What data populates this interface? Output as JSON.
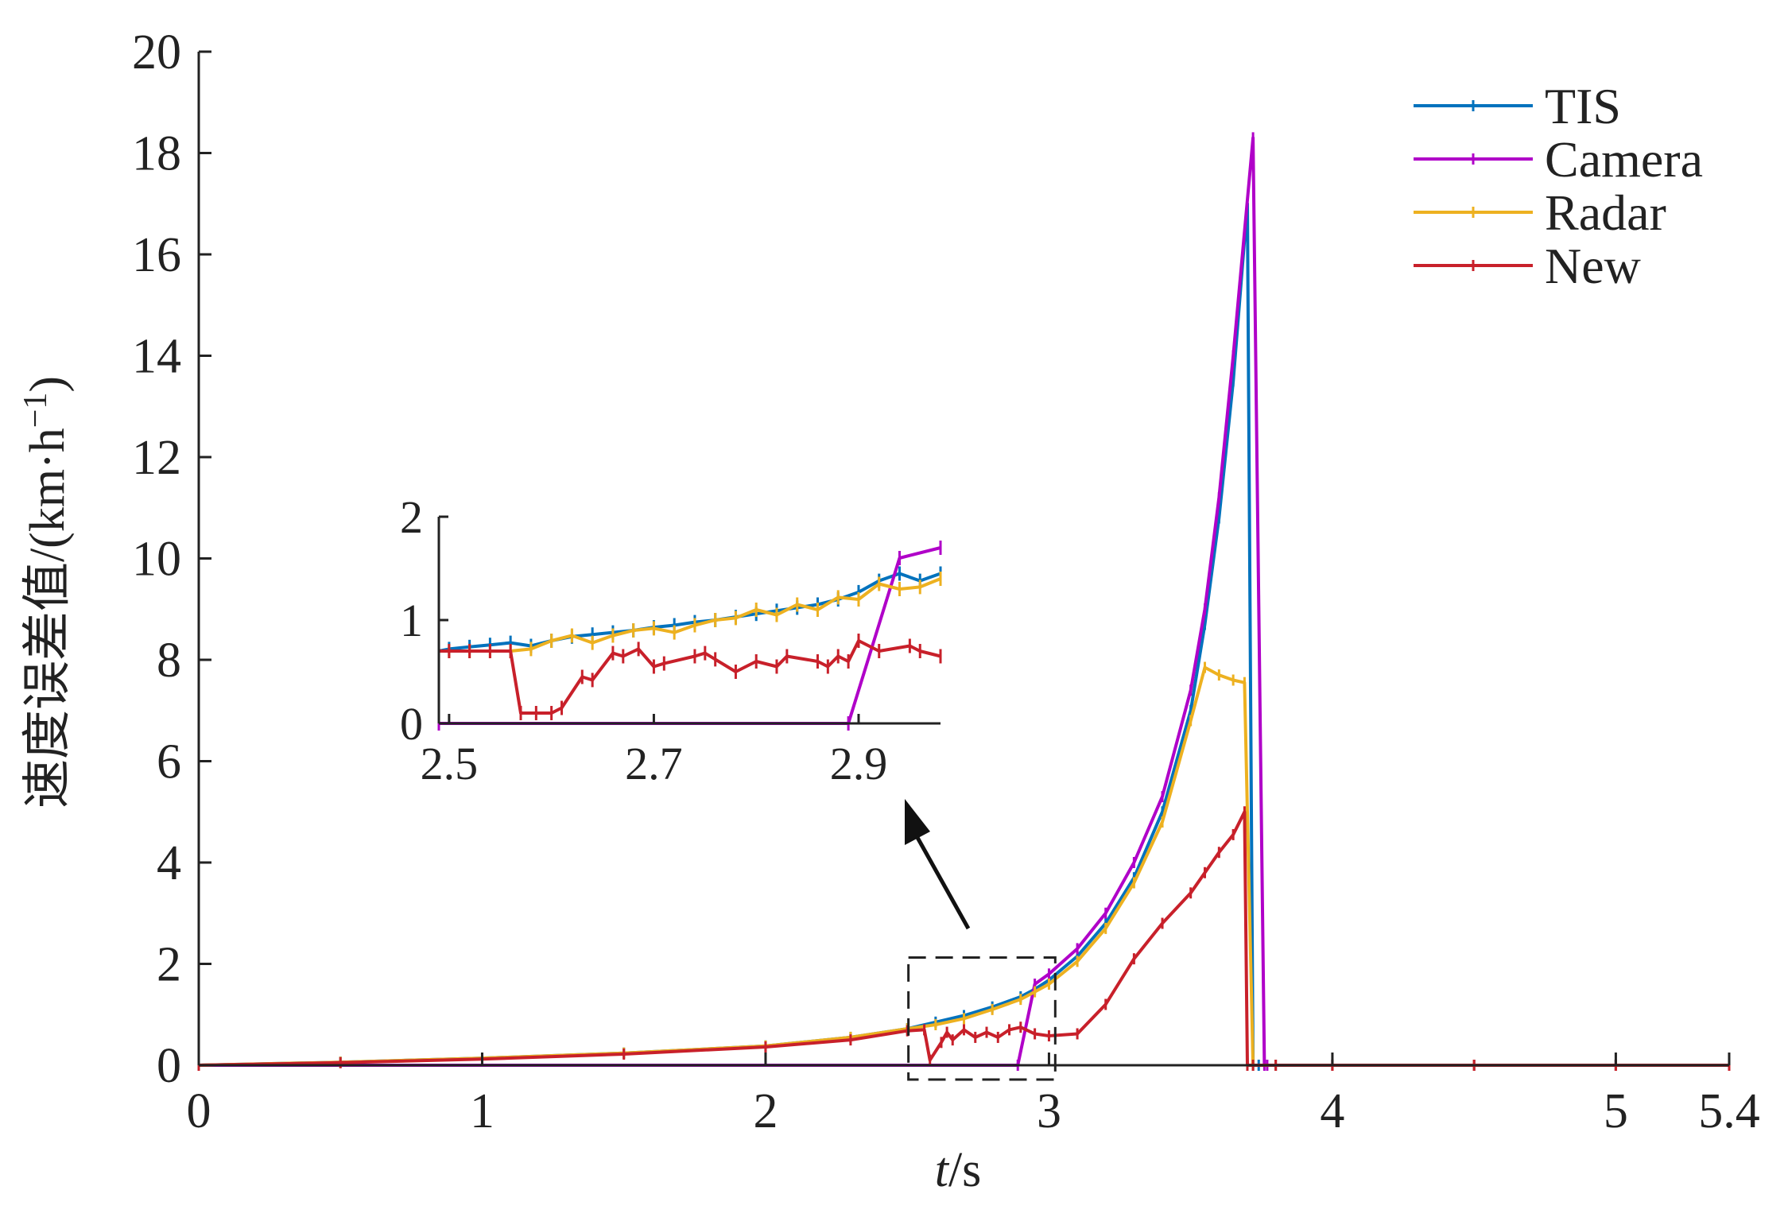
{
  "chart_data": {
    "type": "line",
    "xlabel_italic": "t",
    "xlabel_unit": "/s",
    "ylabel_main": "速度误差值/(km·h",
    "ylabel_sup": "−1",
    "ylabel_close": ")",
    "xlim": [
      0,
      5.4
    ],
    "ylim": [
      0,
      20
    ],
    "x_ticks": [
      0,
      1,
      2,
      3,
      4,
      5,
      5.4
    ],
    "x_tick_labels": [
      "0",
      "1",
      "2",
      "3",
      "4",
      "5",
      "5.4"
    ],
    "y_ticks": [
      0,
      2,
      4,
      6,
      8,
      10,
      12,
      14,
      16,
      18,
      20
    ],
    "y_tick_labels": [
      "0",
      "2",
      "4",
      "6",
      "8",
      "10",
      "12",
      "14",
      "16",
      "18",
      "20"
    ],
    "legend_position": "top-right",
    "grid": false,
    "series": [
      {
        "name": "TIS",
        "color": "#0072BD",
        "x": [
          0,
          0.5,
          1.0,
          1.5,
          2.0,
          2.3,
          2.5,
          2.6,
          2.7,
          2.8,
          2.9,
          2.95,
          3.0,
          3.1,
          3.2,
          3.3,
          3.4,
          3.5,
          3.55,
          3.6,
          3.65,
          3.7,
          3.72,
          3.74,
          3.8,
          4.0,
          4.5,
          5.0,
          5.4
        ],
        "y": [
          0,
          0.06,
          0.14,
          0.24,
          0.38,
          0.55,
          0.72,
          0.85,
          0.98,
          1.15,
          1.35,
          1.5,
          1.68,
          2.15,
          2.8,
          3.7,
          5.0,
          7.0,
          8.7,
          10.8,
          13.5,
          17.0,
          0,
          0,
          0,
          0,
          0,
          0,
          0
        ]
      },
      {
        "name": "Camera",
        "color": "#B000C8",
        "x": [
          0,
          2.89,
          2.95,
          3.0,
          3.1,
          3.2,
          3.3,
          3.4,
          3.5,
          3.55,
          3.6,
          3.65,
          3.72,
          3.76,
          3.77,
          4.0,
          4.5,
          5.0,
          5.4
        ],
        "y": [
          0,
          0,
          1.6,
          1.8,
          2.3,
          3.0,
          4.0,
          5.3,
          7.4,
          9.0,
          11.2,
          14.0,
          18.3,
          0,
          0,
          0,
          0,
          0,
          0
        ]
      },
      {
        "name": "Radar",
        "color": "#EDB120",
        "x": [
          0,
          0.5,
          1.0,
          1.5,
          2.0,
          2.3,
          2.5,
          2.6,
          2.7,
          2.8,
          2.9,
          2.95,
          3.0,
          3.1,
          3.2,
          3.3,
          3.4,
          3.5,
          3.55,
          3.6,
          3.65,
          3.69,
          3.7,
          3.72,
          3.8,
          4.0,
          4.5,
          5.0,
          5.4
        ],
        "y": [
          0,
          0.06,
          0.14,
          0.24,
          0.38,
          0.55,
          0.72,
          0.8,
          0.92,
          1.1,
          1.3,
          1.45,
          1.6,
          2.05,
          2.7,
          3.6,
          4.8,
          6.8,
          7.85,
          7.7,
          7.6,
          7.55,
          5.0,
          0,
          0,
          0,
          0,
          0,
          0
        ]
      },
      {
        "name": "New",
        "color": "#C8202A",
        "x": [
          0,
          0.5,
          1.0,
          1.5,
          2.0,
          2.3,
          2.5,
          2.56,
          2.58,
          2.62,
          2.64,
          2.66,
          2.7,
          2.74,
          2.78,
          2.82,
          2.86,
          2.9,
          2.95,
          3.0,
          3.1,
          3.2,
          3.3,
          3.4,
          3.5,
          3.55,
          3.6,
          3.65,
          3.69,
          3.7,
          3.72,
          3.8,
          4.0,
          4.5,
          5.0,
          5.4
        ],
        "y": [
          0,
          0.05,
          0.12,
          0.22,
          0.36,
          0.5,
          0.68,
          0.7,
          0.1,
          0.45,
          0.65,
          0.5,
          0.7,
          0.55,
          0.65,
          0.55,
          0.7,
          0.75,
          0.62,
          0.58,
          0.62,
          1.2,
          2.1,
          2.8,
          3.4,
          3.8,
          4.2,
          4.55,
          5.0,
          0,
          0,
          0,
          0,
          0,
          0,
          0
        ]
      }
    ],
    "inset": {
      "xlim": [
        2.49,
        2.98
      ],
      "ylim": [
        0,
        2
      ],
      "x_ticks": [
        2.5,
        2.7,
        2.9
      ],
      "x_tick_labels": [
        "2.5",
        "2.7",
        "2.9"
      ],
      "y_ticks": [
        0,
        1,
        2
      ],
      "y_tick_labels": [
        "0",
        "1",
        "2"
      ],
      "series": [
        {
          "name": "TIS",
          "color": "#0072BD",
          "x": [
            2.49,
            2.5,
            2.52,
            2.54,
            2.56,
            2.58,
            2.6,
            2.62,
            2.64,
            2.66,
            2.68,
            2.7,
            2.72,
            2.74,
            2.76,
            2.78,
            2.8,
            2.82,
            2.84,
            2.86,
            2.88,
            2.9,
            2.92,
            2.94,
            2.96,
            2.98
          ],
          "y": [
            0.7,
            0.72,
            0.74,
            0.76,
            0.78,
            0.75,
            0.8,
            0.84,
            0.86,
            0.88,
            0.9,
            0.93,
            0.95,
            0.98,
            1.0,
            1.03,
            1.06,
            1.09,
            1.12,
            1.15,
            1.2,
            1.27,
            1.38,
            1.45,
            1.38,
            1.45
          ]
        },
        {
          "name": "Camera",
          "color": "#B000C8",
          "x": [
            2.49,
            2.89,
            2.94,
            2.98
          ],
          "y": [
            0,
            0,
            1.6,
            1.7
          ]
        },
        {
          "name": "Radar",
          "color": "#EDB120",
          "x": [
            2.49,
            2.5,
            2.52,
            2.54,
            2.56,
            2.58,
            2.6,
            2.62,
            2.64,
            2.66,
            2.68,
            2.7,
            2.72,
            2.74,
            2.76,
            2.78,
            2.8,
            2.82,
            2.84,
            2.86,
            2.88,
            2.9,
            2.92,
            2.94,
            2.96,
            2.98
          ],
          "y": [
            0.7,
            0.7,
            0.7,
            0.7,
            0.7,
            0.72,
            0.8,
            0.85,
            0.78,
            0.85,
            0.9,
            0.92,
            0.88,
            0.95,
            1.0,
            1.02,
            1.1,
            1.05,
            1.15,
            1.1,
            1.22,
            1.2,
            1.35,
            1.3,
            1.32,
            1.4
          ]
        },
        {
          "name": "New",
          "color": "#C8202A",
          "x": [
            2.49,
            2.5,
            2.52,
            2.54,
            2.56,
            2.57,
            2.585,
            2.6,
            2.61,
            2.63,
            2.64,
            2.66,
            2.67,
            2.685,
            2.7,
            2.71,
            2.74,
            2.75,
            2.76,
            2.78,
            2.8,
            2.82,
            2.83,
            2.86,
            2.87,
            2.88,
            2.89,
            2.9,
            2.92,
            2.95,
            2.96,
            2.98
          ],
          "y": [
            0.7,
            0.7,
            0.7,
            0.7,
            0.7,
            0.1,
            0.1,
            0.1,
            0.15,
            0.45,
            0.42,
            0.68,
            0.65,
            0.72,
            0.55,
            0.58,
            0.65,
            0.68,
            0.62,
            0.5,
            0.6,
            0.55,
            0.65,
            0.6,
            0.55,
            0.65,
            0.6,
            0.8,
            0.7,
            0.75,
            0.7,
            0.65
          ]
        }
      ]
    }
  }
}
